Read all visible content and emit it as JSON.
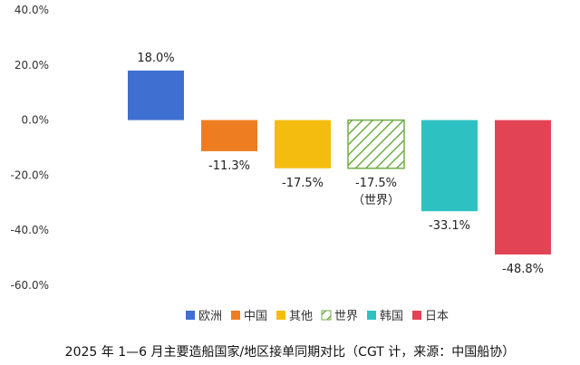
{
  "chart_data": {
    "type": "bar",
    "title": "",
    "caption": "2025 年 1—6 月主要造船国家/地区接单同期对比（CGT 计，来源：中国船协）",
    "xlabel": "",
    "ylabel": "",
    "ylim": [
      -60,
      40
    ],
    "yticks": [
      40,
      20,
      0,
      -20,
      -40,
      -60
    ],
    "ytick_labels": [
      "40.0%",
      "20.0%",
      "0.0%",
      "-20.0%",
      "-40.0%",
      "-60.0%"
    ],
    "grid": false,
    "legend_position": "bottom",
    "series": [
      {
        "name": "欧洲",
        "value": 18.0,
        "label": "18.0%",
        "color": "#3f6fd0",
        "pattern": "solid"
      },
      {
        "name": "中国",
        "value": -11.3,
        "label": "-11.3%",
        "color": "#ee7d22",
        "pattern": "solid"
      },
      {
        "name": "其他",
        "value": -17.5,
        "label": "-17.5%",
        "color": "#f5bc10",
        "pattern": "solid"
      },
      {
        "name": "世界",
        "value": -17.5,
        "label": "-17.5%",
        "sublabel": "（世界）",
        "color": "#70ad47",
        "pattern": "hatched"
      },
      {
        "name": "韩国",
        "value": -33.1,
        "label": "-33.1%",
        "color": "#2ec1c1",
        "pattern": "solid"
      },
      {
        "name": "日本",
        "value": -48.8,
        "label": "-48.8%",
        "color": "#e24455",
        "pattern": "solid"
      }
    ]
  }
}
